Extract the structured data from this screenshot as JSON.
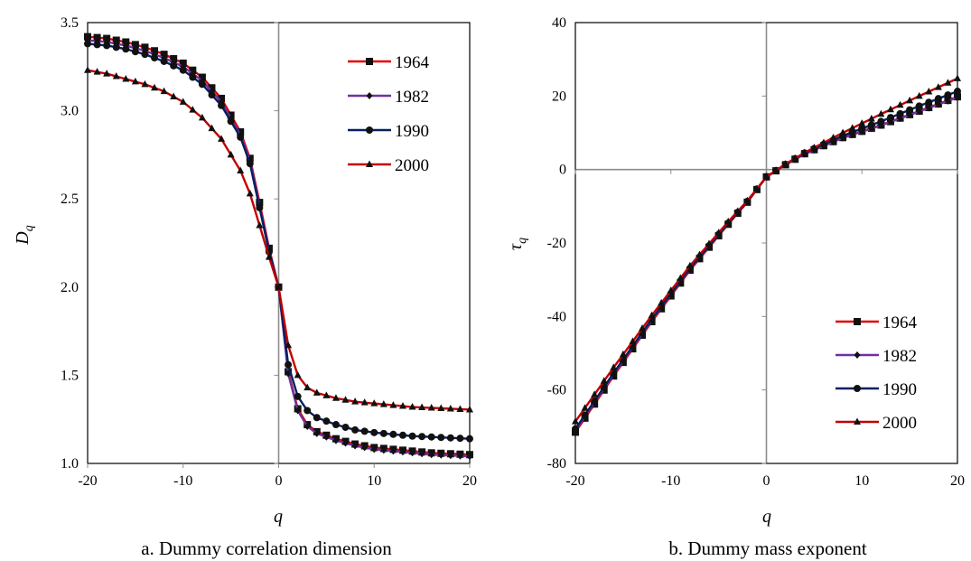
{
  "chart_data": [
    {
      "type": "line",
      "caption": "a. Dummy correlation dimension",
      "xlabel": "q",
      "ylabel_main": "D",
      "ylabel_sub": "q",
      "xlim": [
        -20,
        20
      ],
      "ylim": [
        1.0,
        3.5
      ],
      "xticks": [
        -20,
        -10,
        0,
        10,
        20
      ],
      "yticks": [
        1.0,
        1.5,
        2.0,
        2.5,
        3.0,
        3.5
      ],
      "ytick_labels": [
        "1.0",
        "1.5",
        "2.0",
        "2.5",
        "3.0",
        "3.5"
      ],
      "zero_lines": true,
      "legend_position": "top-right",
      "series": [
        {
          "name": "1964",
          "color": "#e00000",
          "marker": "square",
          "x": [
            -20,
            -18,
            -16,
            -14,
            -12,
            -10,
            -8,
            -6,
            -4,
            -3,
            -2,
            -1,
            0,
            1,
            2,
            3,
            4,
            6,
            8,
            10,
            12,
            14,
            16,
            18,
            20
          ],
          "y": [
            3.42,
            3.41,
            3.39,
            3.36,
            3.32,
            3.27,
            3.19,
            3.07,
            2.88,
            2.73,
            2.48,
            2.22,
            2.0,
            1.52,
            1.31,
            1.22,
            1.18,
            1.14,
            1.11,
            1.09,
            1.08,
            1.07,
            1.06,
            1.055,
            1.05
          ]
        },
        {
          "name": "1982",
          "color": "#7030a0",
          "marker": "diamond",
          "x": [
            -20,
            -18,
            -16,
            -14,
            -12,
            -10,
            -8,
            -6,
            -4,
            -3,
            -2,
            -1,
            0,
            1,
            2,
            3,
            4,
            6,
            8,
            10,
            12,
            14,
            16,
            18,
            20
          ],
          "y": [
            3.4,
            3.39,
            3.37,
            3.34,
            3.3,
            3.25,
            3.17,
            3.05,
            2.86,
            2.72,
            2.46,
            2.21,
            2.0,
            1.51,
            1.3,
            1.21,
            1.17,
            1.13,
            1.1,
            1.08,
            1.07,
            1.06,
            1.05,
            1.045,
            1.04
          ]
        },
        {
          "name": "1990",
          "color": "#002060",
          "marker": "circle",
          "x": [
            -20,
            -18,
            -16,
            -14,
            -12,
            -10,
            -8,
            -6,
            -4,
            -3,
            -2,
            -1,
            0,
            1,
            2,
            3,
            4,
            6,
            8,
            10,
            12,
            14,
            16,
            18,
            20
          ],
          "y": [
            3.38,
            3.37,
            3.35,
            3.32,
            3.28,
            3.23,
            3.15,
            3.03,
            2.85,
            2.7,
            2.45,
            2.2,
            2.0,
            1.56,
            1.38,
            1.3,
            1.26,
            1.22,
            1.19,
            1.175,
            1.165,
            1.155,
            1.15,
            1.145,
            1.14
          ]
        },
        {
          "name": "2000",
          "color": "#c00000",
          "marker": "triangle",
          "x": [
            -20,
            -18,
            -16,
            -14,
            -12,
            -10,
            -8,
            -6,
            -4,
            -3,
            -2,
            -1,
            0,
            1,
            2,
            3,
            4,
            6,
            8,
            10,
            12,
            14,
            16,
            18,
            20
          ],
          "y": [
            3.23,
            3.21,
            3.18,
            3.15,
            3.11,
            3.05,
            2.96,
            2.84,
            2.66,
            2.53,
            2.35,
            2.17,
            2.0,
            1.67,
            1.5,
            1.43,
            1.4,
            1.37,
            1.35,
            1.34,
            1.33,
            1.32,
            1.315,
            1.31,
            1.305
          ]
        }
      ]
    },
    {
      "type": "line",
      "caption": "b. Dummy mass exponent",
      "xlabel": "q",
      "ylabel_main": "τ",
      "ylabel_sub": "q",
      "xlim": [
        -20,
        20
      ],
      "ylim": [
        -80,
        40
      ],
      "xticks": [
        -20,
        -10,
        0,
        10,
        20
      ],
      "yticks": [
        -80,
        -60,
        -40,
        -20,
        0,
        20,
        40
      ],
      "ytick_labels": [
        "-80",
        "-60",
        "-40",
        "-20",
        "0",
        "20",
        "40"
      ],
      "zero_lines": true,
      "legend_position": "bottom-right",
      "series": [
        {
          "name": "1964",
          "color": "#e00000",
          "marker": "square",
          "x": [
            -20,
            -16,
            -12,
            -8,
            -4,
            -2,
            0,
            2,
            4,
            8,
            12,
            16,
            20
          ],
          "y": [
            -71.5,
            -56.2,
            -41.4,
            -27.4,
            -14.9,
            -8.9,
            -2.0,
            1.3,
            4.3,
            8.7,
            12.1,
            15.9,
            19.8
          ]
        },
        {
          "name": "1982",
          "color": "#7030a0",
          "marker": "diamond",
          "x": [
            -20,
            -16,
            -12,
            -8,
            -4,
            -2,
            0,
            2,
            4,
            8,
            12,
            16,
            20
          ],
          "y": [
            -71.0,
            -55.8,
            -41.0,
            -27.1,
            -14.7,
            -8.8,
            -2.0,
            1.3,
            4.2,
            8.6,
            12.0,
            15.8,
            19.6
          ]
        },
        {
          "name": "1990",
          "color": "#002060",
          "marker": "circle",
          "x": [
            -20,
            -16,
            -12,
            -8,
            -4,
            -2,
            0,
            2,
            4,
            8,
            12,
            16,
            20
          ],
          "y": [
            -70.6,
            -55.4,
            -40.7,
            -26.9,
            -14.6,
            -8.7,
            -2.0,
            1.4,
            4.5,
            9.2,
            13.1,
            17.3,
            21.3
          ]
        },
        {
          "name": "2000",
          "color": "#c00000",
          "marker": "triangle",
          "x": [
            -20,
            -16,
            -12,
            -8,
            -4,
            -2,
            0,
            2,
            4,
            8,
            12,
            16,
            20
          ],
          "y": [
            -68.6,
            -53.9,
            -39.7,
            -26.2,
            -14.2,
            -8.5,
            -2.0,
            1.5,
            4.6,
            10.0,
            15.1,
            20.0,
            24.8
          ]
        }
      ]
    }
  ]
}
